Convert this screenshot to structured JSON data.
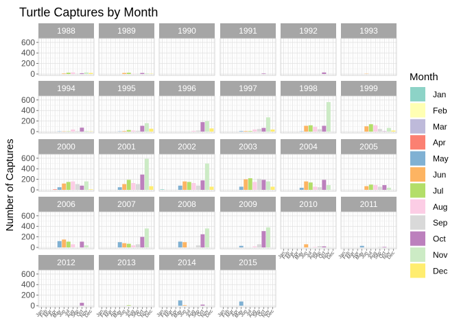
{
  "chart_data": {
    "type": "bar",
    "title": "Turtle Captures by Month",
    "xlabel": "",
    "ylabel": "Number of Captures",
    "ylim": [
      0,
      650
    ],
    "yticks": [
      0,
      200,
      400,
      600
    ],
    "grid": true,
    "legend_title": "Month",
    "legend_position": "right",
    "categories": [
      "Jan",
      "Feb",
      "Mar",
      "Apr",
      "May",
      "Jun",
      "Jul",
      "Aug",
      "Sep",
      "Oct",
      "Nov",
      "Dec"
    ],
    "colors": [
      "#8DD3C7",
      "#FFFFB3",
      "#BEBADA",
      "#FB8072",
      "#80B1D3",
      "#FDB462",
      "#B3DE69",
      "#FCCDE5",
      "#D9D9D9",
      "#BC80BD",
      "#CCEBC5",
      "#FFED6F"
    ],
    "panels": [
      {
        "year": "1988",
        "values": [
          0,
          0,
          0,
          0,
          0,
          10,
          25,
          30,
          5,
          15,
          30,
          20
        ]
      },
      {
        "year": "1989",
        "values": [
          0,
          0,
          0,
          0,
          0,
          20,
          25,
          5,
          5,
          20,
          10,
          5
        ]
      },
      {
        "year": "1990",
        "values": [
          0,
          0,
          0,
          0,
          0,
          0,
          0,
          0,
          0,
          0,
          0,
          0
        ]
      },
      {
        "year": "1991",
        "values": [
          0,
          0,
          0,
          0,
          0,
          0,
          0,
          0,
          0,
          10,
          0,
          0
        ]
      },
      {
        "year": "1992",
        "values": [
          0,
          0,
          0,
          0,
          0,
          0,
          0,
          0,
          0,
          30,
          0,
          0
        ]
      },
      {
        "year": "1993",
        "values": [
          0,
          0,
          0,
          0,
          0,
          5,
          0,
          0,
          0,
          0,
          0,
          0
        ]
      },
      {
        "year": "1994",
        "values": [
          0,
          0,
          0,
          0,
          5,
          5,
          5,
          40,
          10,
          75,
          10,
          5
        ]
      },
      {
        "year": "1995",
        "values": [
          0,
          0,
          0,
          0,
          5,
          10,
          30,
          20,
          15,
          110,
          160,
          55
        ]
      },
      {
        "year": "1996",
        "values": [
          0,
          0,
          0,
          0,
          0,
          0,
          0,
          15,
          20,
          180,
          200,
          60
        ]
      },
      {
        "year": "1997",
        "values": [
          0,
          0,
          0,
          0,
          10,
          10,
          10,
          40,
          50,
          70,
          270,
          40
        ]
      },
      {
        "year": "1998",
        "values": [
          0,
          0,
          0,
          0,
          5,
          110,
          120,
          90,
          45,
          110,
          560,
          0
        ]
      },
      {
        "year": "1999",
        "values": [
          0,
          0,
          0,
          0,
          0,
          100,
          140,
          120,
          50,
          5,
          70,
          20
        ]
      },
      {
        "year": "2000",
        "values": [
          0,
          0,
          0,
          10,
          50,
          120,
          150,
          160,
          110,
          80,
          160,
          10
        ]
      },
      {
        "year": "2001",
        "values": [
          0,
          0,
          0,
          0,
          50,
          110,
          190,
          130,
          110,
          290,
          590,
          70
        ]
      },
      {
        "year": "2002",
        "values": [
          10,
          0,
          0,
          0,
          80,
          160,
          150,
          130,
          80,
          180,
          500,
          60
        ]
      },
      {
        "year": "2003",
        "values": [
          0,
          0,
          0,
          0,
          60,
          200,
          220,
          150,
          210,
          190,
          160,
          60
        ]
      },
      {
        "year": "2004",
        "values": [
          0,
          0,
          0,
          0,
          40,
          160,
          140,
          60,
          50,
          190,
          90,
          0
        ]
      },
      {
        "year": "2005",
        "values": [
          0,
          0,
          0,
          0,
          0,
          70,
          100,
          90,
          60,
          90,
          40,
          0
        ]
      },
      {
        "year": "2006",
        "values": [
          0,
          0,
          0,
          0,
          120,
          150,
          110,
          60,
          0,
          110,
          40,
          0
        ]
      },
      {
        "year": "2007",
        "values": [
          0,
          0,
          0,
          0,
          100,
          80,
          70,
          40,
          60,
          200,
          360,
          0
        ]
      },
      {
        "year": "2008",
        "values": [
          0,
          0,
          0,
          0,
          110,
          100,
          0,
          0,
          40,
          250,
          360,
          0
        ]
      },
      {
        "year": "2009",
        "values": [
          0,
          0,
          0,
          0,
          30,
          0,
          0,
          20,
          60,
          310,
          380,
          0
        ]
      },
      {
        "year": "2010",
        "values": [
          0,
          0,
          0,
          0,
          0,
          60,
          0,
          10,
          25,
          20,
          5,
          0
        ]
      },
      {
        "year": "2011",
        "values": [
          0,
          0,
          0,
          0,
          30,
          0,
          0,
          0,
          10,
          10,
          0,
          0
        ]
      },
      {
        "year": "2012",
        "values": [
          0,
          0,
          0,
          0,
          0,
          0,
          0,
          0,
          0,
          55,
          0,
          0
        ]
      },
      {
        "year": "2013",
        "values": [
          0,
          0,
          0,
          0,
          0,
          0,
          10,
          0,
          0,
          0,
          0,
          0
        ]
      },
      {
        "year": "2014",
        "values": [
          0,
          0,
          0,
          0,
          100,
          10,
          0,
          0,
          0,
          20,
          0,
          0
        ]
      },
      {
        "year": "2015",
        "values": [
          0,
          0,
          0,
          0,
          80,
          0,
          0,
          0,
          0,
          0,
          0,
          0
        ]
      }
    ]
  }
}
